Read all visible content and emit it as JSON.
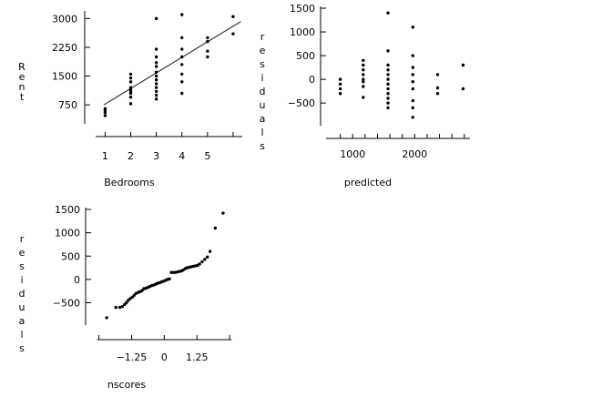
{
  "chart_data": [
    {
      "type": "scatter",
      "xlabel": "Bedrooms",
      "ylabel": "Rent",
      "xlim": [
        0.7,
        6.5
      ],
      "ylim": [
        350,
        3150
      ],
      "xticks": [
        1,
        2,
        3,
        4,
        5
      ],
      "extra_x_ticks": [
        6
      ],
      "yticks": [
        750,
        1500,
        2250,
        3000
      ],
      "fit_line": [
        [
          0.95,
          750
        ],
        [
          6.3,
          2920
        ]
      ],
      "points": [
        [
          1,
          470
        ],
        [
          1,
          550
        ],
        [
          1,
          600
        ],
        [
          1,
          650
        ],
        [
          2,
          780
        ],
        [
          2,
          950
        ],
        [
          2,
          1050
        ],
        [
          2,
          1100
        ],
        [
          2,
          1150
        ],
        [
          2,
          1200
        ],
        [
          2,
          1350
        ],
        [
          2,
          1450
        ],
        [
          2,
          1550
        ],
        [
          3,
          900
        ],
        [
          3,
          1000
        ],
        [
          3,
          1100
        ],
        [
          3,
          1200
        ],
        [
          3,
          1300
        ],
        [
          3,
          1400
        ],
        [
          3,
          1500
        ],
        [
          3,
          1600
        ],
        [
          3,
          1750
        ],
        [
          3,
          1850
        ],
        [
          3,
          2000
        ],
        [
          3,
          2200
        ],
        [
          3,
          3000
        ],
        [
          4,
          1050
        ],
        [
          4,
          1350
        ],
        [
          4,
          1550
        ],
        [
          4,
          1800
        ],
        [
          4,
          2000
        ],
        [
          4,
          2200
        ],
        [
          4,
          2500
        ],
        [
          4,
          3100
        ],
        [
          5,
          2000
        ],
        [
          5,
          2150
        ],
        [
          5,
          2400
        ],
        [
          5,
          2500
        ],
        [
          6,
          2600
        ],
        [
          6,
          3050
        ]
      ]
    },
    {
      "type": "scatter",
      "xlabel": "predicted",
      "ylabel": "residuals",
      "xlim": [
        600,
        2950
      ],
      "ylim": [
        -900,
        1500
      ],
      "xticks": [
        1000,
        2000
      ],
      "minor_xticks": [
        800,
        1200,
        1400,
        1600,
        1800,
        2200,
        2400,
        2600,
        2800
      ],
      "yticks": [
        -500,
        0,
        500,
        1000,
        1500
      ],
      "points": [
        [
          800,
          -300
        ],
        [
          800,
          -200
        ],
        [
          800,
          -100
        ],
        [
          800,
          0
        ],
        [
          1170,
          -380
        ],
        [
          1170,
          -150
        ],
        [
          1170,
          -50
        ],
        [
          1170,
          0
        ],
        [
          1170,
          100
        ],
        [
          1170,
          200
        ],
        [
          1170,
          300
        ],
        [
          1170,
          400
        ],
        [
          1570,
          -600
        ],
        [
          1570,
          -500
        ],
        [
          1570,
          -400
        ],
        [
          1570,
          -300
        ],
        [
          1570,
          -200
        ],
        [
          1570,
          -100
        ],
        [
          1570,
          0
        ],
        [
          1570,
          100
        ],
        [
          1570,
          200
        ],
        [
          1570,
          300
        ],
        [
          1570,
          600
        ],
        [
          1570,
          1400
        ],
        [
          1970,
          -800
        ],
        [
          1970,
          -600
        ],
        [
          1970,
          -450
        ],
        [
          1970,
          -200
        ],
        [
          1970,
          -50
        ],
        [
          1970,
          100
        ],
        [
          1970,
          250
        ],
        [
          1970,
          500
        ],
        [
          1970,
          1100
        ],
        [
          2370,
          -300
        ],
        [
          2370,
          -180
        ],
        [
          2370,
          100
        ],
        [
          2780,
          -200
        ],
        [
          2780,
          300
        ]
      ]
    },
    {
      "type": "scatter",
      "xlabel": "nscores",
      "ylabel": "residuals",
      "xlim": [
        -2.45,
        2.6
      ],
      "ylim": [
        -900,
        1500
      ],
      "xticks": [
        -1.25,
        0,
        1.25
      ],
      "minor_xticks": [
        -2.5,
        2.5
      ],
      "yticks": [
        -500,
        0,
        500,
        1000,
        1500
      ],
      "points": [
        [
          -2.2,
          -820
        ],
        [
          -1.85,
          -600
        ],
        [
          -1.7,
          -600
        ],
        [
          -1.6,
          -580
        ],
        [
          -1.52,
          -540
        ],
        [
          -1.45,
          -500
        ],
        [
          -1.38,
          -450
        ],
        [
          -1.3,
          -410
        ],
        [
          -1.22,
          -380
        ],
        [
          -1.15,
          -340
        ],
        [
          -1.08,
          -300
        ],
        [
          -1.0,
          -280
        ],
        [
          -0.92,
          -260
        ],
        [
          -0.85,
          -240
        ],
        [
          -0.78,
          -200
        ],
        [
          -0.7,
          -190
        ],
        [
          -0.62,
          -170
        ],
        [
          -0.55,
          -150
        ],
        [
          -0.47,
          -130
        ],
        [
          -0.4,
          -120
        ],
        [
          -0.32,
          -100
        ],
        [
          -0.25,
          -80
        ],
        [
          -0.17,
          -70
        ],
        [
          -0.1,
          -50
        ],
        [
          -0.03,
          -40
        ],
        [
          0.05,
          -20
        ],
        [
          0.12,
          0
        ],
        [
          0.2,
          10
        ],
        [
          0.27,
          150
        ],
        [
          0.35,
          150
        ],
        [
          0.42,
          150
        ],
        [
          0.5,
          160
        ],
        [
          0.57,
          170
        ],
        [
          0.65,
          180
        ],
        [
          0.72,
          200
        ],
        [
          0.8,
          230
        ],
        [
          0.87,
          250
        ],
        [
          0.95,
          260
        ],
        [
          1.02,
          270
        ],
        [
          1.1,
          280
        ],
        [
          1.18,
          290
        ],
        [
          1.27,
          300
        ],
        [
          1.35,
          330
        ],
        [
          1.45,
          380
        ],
        [
          1.55,
          430
        ],
        [
          1.65,
          480
        ],
        [
          1.75,
          600
        ],
        [
          1.95,
          1100
        ],
        [
          2.25,
          1420
        ]
      ]
    }
  ]
}
